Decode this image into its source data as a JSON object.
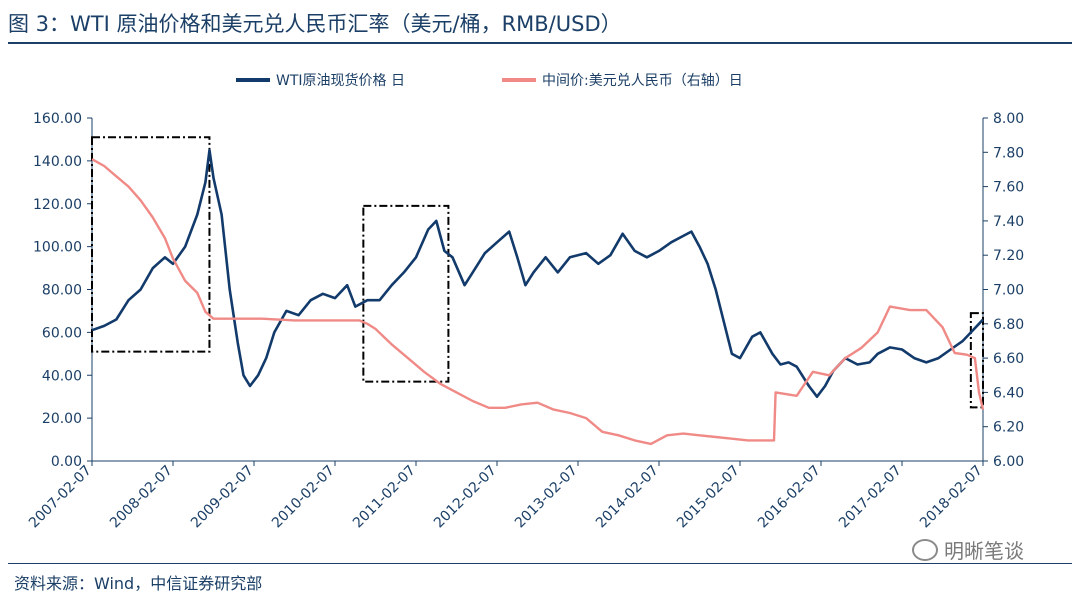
{
  "title": "图 3：WTI 原油价格和美元兑人民币汇率（美元/桶，RMB/USD）",
  "source": "资料来源：Wind，中信证券研究部",
  "watermark": "明晰笔谈",
  "colors": {
    "wti": "#123a6b",
    "cny": "#f08a86",
    "axis": "#1b3f66",
    "box": "#000000"
  },
  "chart_data": {
    "type": "line",
    "x_ticks": [
      "2007-02-07",
      "2008-02-07",
      "2009-02-07",
      "2010-02-07",
      "2011-02-07",
      "2012-02-07",
      "2013-02-07",
      "2014-02-07",
      "2015-02-07",
      "2016-02-07",
      "2017-02-07",
      "2018-02-07"
    ],
    "x_range": [
      2007.1,
      2018.1
    ],
    "y_left": {
      "ticks": [
        "0.00",
        "20.00",
        "40.00",
        "60.00",
        "80.00",
        "100.00",
        "120.00",
        "140.00",
        "160.00"
      ],
      "range": [
        0,
        160
      ]
    },
    "y_right": {
      "ticks": [
        "6.00",
        "6.20",
        "6.40",
        "6.60",
        "6.80",
        "7.00",
        "7.20",
        "7.40",
        "7.60",
        "7.80",
        "8.00"
      ],
      "range": [
        6.0,
        8.0
      ]
    },
    "legend": [
      {
        "name": "WTI原油现货价格 日",
        "axis": "left"
      },
      {
        "name": "中间价:美元兑人民币（右轴）日",
        "axis": "right"
      }
    ],
    "series": [
      {
        "name": "WTI原油现货价格 日",
        "axis": "left",
        "points": [
          [
            2007.1,
            61
          ],
          [
            2007.25,
            63
          ],
          [
            2007.4,
            66
          ],
          [
            2007.55,
            75
          ],
          [
            2007.7,
            80
          ],
          [
            2007.85,
            90
          ],
          [
            2008.0,
            95
          ],
          [
            2008.1,
            92
          ],
          [
            2008.25,
            100
          ],
          [
            2008.4,
            115
          ],
          [
            2008.5,
            130
          ],
          [
            2008.55,
            145
          ],
          [
            2008.6,
            132
          ],
          [
            2008.7,
            115
          ],
          [
            2008.8,
            80
          ],
          [
            2008.9,
            55
          ],
          [
            2008.97,
            40
          ],
          [
            2009.05,
            35
          ],
          [
            2009.15,
            40
          ],
          [
            2009.25,
            48
          ],
          [
            2009.35,
            60
          ],
          [
            2009.5,
            70
          ],
          [
            2009.65,
            68
          ],
          [
            2009.8,
            75
          ],
          [
            2009.95,
            78
          ],
          [
            2010.1,
            76
          ],
          [
            2010.25,
            82
          ],
          [
            2010.35,
            72
          ],
          [
            2010.5,
            75
          ],
          [
            2010.65,
            75
          ],
          [
            2010.8,
            82
          ],
          [
            2010.95,
            88
          ],
          [
            2011.1,
            95
          ],
          [
            2011.25,
            108
          ],
          [
            2011.35,
            112
          ],
          [
            2011.45,
            98
          ],
          [
            2011.55,
            95
          ],
          [
            2011.7,
            82
          ],
          [
            2011.8,
            88
          ],
          [
            2011.95,
            97
          ],
          [
            2012.1,
            102
          ],
          [
            2012.25,
            107
          ],
          [
            2012.35,
            95
          ],
          [
            2012.45,
            82
          ],
          [
            2012.55,
            88
          ],
          [
            2012.7,
            95
          ],
          [
            2012.85,
            88
          ],
          [
            2013.0,
            95
          ],
          [
            2013.2,
            97
          ],
          [
            2013.35,
            92
          ],
          [
            2013.5,
            96
          ],
          [
            2013.65,
            106
          ],
          [
            2013.8,
            98
          ],
          [
            2013.95,
            95
          ],
          [
            2014.1,
            98
          ],
          [
            2014.25,
            102
          ],
          [
            2014.4,
            105
          ],
          [
            2014.5,
            107
          ],
          [
            2014.6,
            100
          ],
          [
            2014.7,
            92
          ],
          [
            2014.8,
            80
          ],
          [
            2014.9,
            65
          ],
          [
            2015.0,
            50
          ],
          [
            2015.1,
            48
          ],
          [
            2015.25,
            58
          ],
          [
            2015.35,
            60
          ],
          [
            2015.5,
            50
          ],
          [
            2015.6,
            45
          ],
          [
            2015.7,
            46
          ],
          [
            2015.8,
            44
          ],
          [
            2015.95,
            35
          ],
          [
            2016.05,
            30
          ],
          [
            2016.15,
            35
          ],
          [
            2016.25,
            42
          ],
          [
            2016.4,
            48
          ],
          [
            2016.55,
            45
          ],
          [
            2016.7,
            46
          ],
          [
            2016.8,
            50
          ],
          [
            2016.95,
            53
          ],
          [
            2017.1,
            52
          ],
          [
            2017.25,
            48
          ],
          [
            2017.4,
            46
          ],
          [
            2017.55,
            48
          ],
          [
            2017.7,
            52
          ],
          [
            2017.85,
            56
          ],
          [
            2017.95,
            60
          ],
          [
            2018.05,
            64
          ],
          [
            2018.1,
            66
          ]
        ]
      },
      {
        "name": "中间价:美元兑人民币（右轴）日",
        "axis": "right",
        "points": [
          [
            2007.1,
            7.76
          ],
          [
            2007.25,
            7.72
          ],
          [
            2007.4,
            7.66
          ],
          [
            2007.55,
            7.6
          ],
          [
            2007.7,
            7.52
          ],
          [
            2007.85,
            7.42
          ],
          [
            2008.0,
            7.3
          ],
          [
            2008.1,
            7.18
          ],
          [
            2008.25,
            7.05
          ],
          [
            2008.4,
            6.98
          ],
          [
            2008.5,
            6.87
          ],
          [
            2008.6,
            6.83
          ],
          [
            2008.8,
            6.83
          ],
          [
            2009.2,
            6.83
          ],
          [
            2009.6,
            6.82
          ],
          [
            2010.0,
            6.82
          ],
          [
            2010.4,
            6.82
          ],
          [
            2010.5,
            6.8
          ],
          [
            2010.6,
            6.77
          ],
          [
            2010.8,
            6.68
          ],
          [
            2011.0,
            6.6
          ],
          [
            2011.2,
            6.52
          ],
          [
            2011.4,
            6.45
          ],
          [
            2011.6,
            6.4
          ],
          [
            2011.8,
            6.35
          ],
          [
            2012.0,
            6.31
          ],
          [
            2012.2,
            6.31
          ],
          [
            2012.4,
            6.33
          ],
          [
            2012.6,
            6.34
          ],
          [
            2012.8,
            6.3
          ],
          [
            2013.0,
            6.28
          ],
          [
            2013.2,
            6.25
          ],
          [
            2013.4,
            6.17
          ],
          [
            2013.6,
            6.15
          ],
          [
            2013.8,
            6.12
          ],
          [
            2014.0,
            6.1
          ],
          [
            2014.2,
            6.15
          ],
          [
            2014.4,
            6.16
          ],
          [
            2014.6,
            6.15
          ],
          [
            2014.8,
            6.14
          ],
          [
            2015.0,
            6.13
          ],
          [
            2015.2,
            6.12
          ],
          [
            2015.4,
            6.12
          ],
          [
            2015.52,
            6.12
          ],
          [
            2015.54,
            6.4
          ],
          [
            2015.8,
            6.38
          ],
          [
            2016.0,
            6.52
          ],
          [
            2016.2,
            6.5
          ],
          [
            2016.4,
            6.6
          ],
          [
            2016.6,
            6.66
          ],
          [
            2016.8,
            6.75
          ],
          [
            2016.95,
            6.9
          ],
          [
            2017.2,
            6.88
          ],
          [
            2017.4,
            6.88
          ],
          [
            2017.6,
            6.78
          ],
          [
            2017.75,
            6.63
          ],
          [
            2017.9,
            6.62
          ],
          [
            2018.0,
            6.6
          ],
          [
            2018.05,
            6.4
          ],
          [
            2018.1,
            6.3
          ]
        ]
      }
    ],
    "highlight_boxes": [
      {
        "x": [
          2007.1,
          2008.55
        ],
        "y_left": [
          51,
          151
        ]
      },
      {
        "x": [
          2010.45,
          2011.5
        ],
        "y_left": [
          37,
          119
        ]
      },
      {
        "x": [
          2017.95,
          2018.1
        ],
        "y_left": [
          25,
          69
        ]
      }
    ]
  }
}
